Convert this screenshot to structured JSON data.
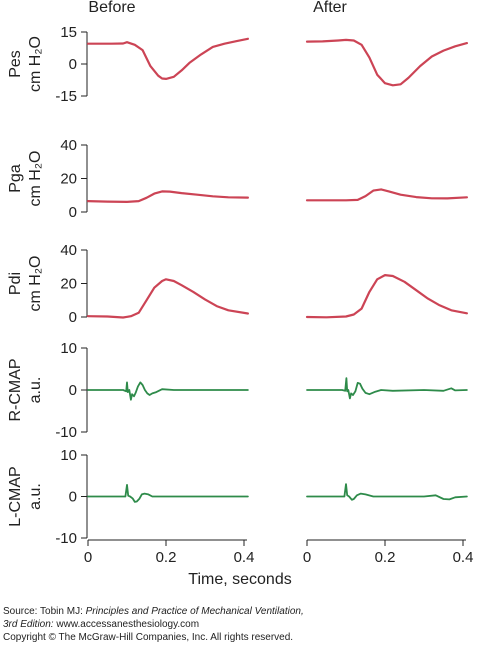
{
  "columns": [
    "Before",
    "After"
  ],
  "x_axis_label": "Time, seconds",
  "source": {
    "prefix": "Source: Tobin MJ: ",
    "title_line1": "Principles and Practice of Mechanical Ventilation,",
    "edition": "3rd Edition:",
    "url": " www.accessanesthesiology.com",
    "copyright": "Copyright © The McGraw-Hill Companies, Inc. All rights reserved."
  },
  "colors": {
    "pressure": "#cc4455",
    "cmap": "#2e8b4a",
    "axis": "#222222"
  },
  "chart_data": [
    {
      "type": "line",
      "id": "pes",
      "label_line1": "Pes",
      "label_line2": "cm H₂O",
      "ylim": [
        -15,
        15
      ],
      "yticks": [
        15,
        0,
        -15
      ],
      "xlim": [
        0,
        0.4
      ],
      "xticks": [
        0,
        0.2,
        0.4
      ],
      "series": [
        {
          "column": "Before",
          "x": [
            0,
            0.03,
            0.06,
            0.09,
            0.1,
            0.12,
            0.14,
            0.16,
            0.18,
            0.19,
            0.2,
            0.22,
            0.24,
            0.26,
            0.29,
            0.32,
            0.35,
            0.38,
            0.41
          ],
          "y": [
            9.5,
            9.5,
            9.5,
            9.6,
            10.2,
            9,
            6.5,
            -1,
            -5.5,
            -6.8,
            -7,
            -6,
            -3,
            0.5,
            4.5,
            8,
            9.5,
            10.7,
            11.8
          ]
        },
        {
          "column": "After",
          "x": [
            0,
            0.04,
            0.08,
            0.1,
            0.12,
            0.14,
            0.16,
            0.18,
            0.2,
            0.22,
            0.24,
            0.26,
            0.29,
            0.32,
            0.35,
            0.38,
            0.41
          ],
          "y": [
            10.5,
            10.6,
            11,
            11.3,
            11,
            9,
            3,
            -5,
            -9,
            -10,
            -9.5,
            -6.5,
            -1,
            3.5,
            6.3,
            8.3,
            9.8
          ]
        }
      ]
    },
    {
      "type": "line",
      "id": "pga",
      "label_line1": "Pga",
      "label_line2": "cm H₂O",
      "ylim": [
        0,
        40
      ],
      "yticks": [
        40,
        20,
        0
      ],
      "xlim": [
        0,
        0.4
      ],
      "xticks": [
        0,
        0.2,
        0.4
      ],
      "series": [
        {
          "column": "Before",
          "x": [
            0,
            0.05,
            0.1,
            0.13,
            0.15,
            0.17,
            0.19,
            0.21,
            0.24,
            0.28,
            0.32,
            0.36,
            0.41
          ],
          "y": [
            6.5,
            6.2,
            6,
            6.5,
            8.5,
            11,
            12.3,
            12.2,
            11.3,
            10.3,
            9.4,
            8.8,
            8.6
          ]
        },
        {
          "column": "After",
          "x": [
            0,
            0.05,
            0.1,
            0.13,
            0.15,
            0.17,
            0.19,
            0.21,
            0.24,
            0.28,
            0.32,
            0.36,
            0.41
          ],
          "y": [
            7,
            7,
            7,
            7.2,
            9.5,
            12.8,
            13.5,
            12.3,
            10.3,
            8.9,
            8.2,
            8.1,
            8.8
          ]
        }
      ]
    },
    {
      "type": "line",
      "id": "pdi",
      "label_line1": "Pdi",
      "label_line2": "cm H₂O",
      "ylim": [
        0,
        40
      ],
      "yticks": [
        40,
        20,
        0
      ],
      "xlim": [
        0,
        0.4
      ],
      "xticks": [
        0,
        0.2,
        0.4
      ],
      "series": [
        {
          "column": "Before",
          "x": [
            0,
            0.05,
            0.09,
            0.11,
            0.13,
            0.15,
            0.17,
            0.19,
            0.2,
            0.22,
            0.24,
            0.27,
            0.3,
            0.33,
            0.36,
            0.41
          ],
          "y": [
            0.5,
            0.3,
            -0.3,
            0.5,
            2.5,
            10,
            17.5,
            21.5,
            22.5,
            21.5,
            19,
            15,
            10.5,
            6.5,
            4,
            2.1
          ]
        },
        {
          "column": "After",
          "x": [
            0,
            0.05,
            0.1,
            0.12,
            0.14,
            0.16,
            0.18,
            0.2,
            0.22,
            0.25,
            0.28,
            0.31,
            0.34,
            0.37,
            0.41
          ],
          "y": [
            0,
            -0.2,
            0.3,
            1.5,
            5,
            15,
            22.5,
            25,
            24.5,
            21,
            16,
            11,
            7,
            4,
            2.2
          ]
        }
      ]
    },
    {
      "type": "line",
      "id": "rcmap",
      "label_line1": "R-CMAP",
      "label_line2": "a.u.",
      "ylim": [
        -10,
        10
      ],
      "yticks": [
        10,
        0,
        -10
      ],
      "xlim": [
        0,
        0.4
      ],
      "xticks": [
        0,
        0.2,
        0.4
      ],
      "series": [
        {
          "column": "Before",
          "x": [
            0,
            0.05,
            0.09,
            0.098,
            0.1,
            0.102,
            0.106,
            0.11,
            0.113,
            0.118,
            0.122,
            0.128,
            0.134,
            0.14,
            0.146,
            0.152,
            0.158,
            0.165,
            0.175,
            0.19,
            0.22,
            0.3,
            0.41
          ],
          "y": [
            0,
            0,
            0,
            -0.3,
            1.8,
            -0.5,
            0,
            -2.3,
            -1,
            -1.5,
            -0.7,
            0.8,
            1.8,
            1.2,
            0,
            -0.8,
            -1.2,
            -0.8,
            -0.5,
            0.2,
            0,
            0,
            0
          ]
        },
        {
          "column": "After",
          "x": [
            0,
            0.05,
            0.09,
            0.098,
            0.101,
            0.103,
            0.106,
            0.11,
            0.113,
            0.118,
            0.124,
            0.13,
            0.136,
            0.142,
            0.15,
            0.16,
            0.175,
            0.19,
            0.22,
            0.3,
            0.35,
            0.37,
            0.38,
            0.41
          ],
          "y": [
            0,
            0,
            0,
            -0.2,
            2.8,
            -0.3,
            0,
            -2,
            -0.8,
            -1.2,
            -0.3,
            1.7,
            1.5,
            0.3,
            -0.7,
            -1,
            -0.4,
            0,
            -0.2,
            0,
            -0.2,
            0.4,
            -0.1,
            0
          ]
        }
      ]
    },
    {
      "type": "line",
      "id": "lcmap",
      "label_line1": "L-CMAP",
      "label_line2": "a.u.",
      "ylim": [
        -10,
        10
      ],
      "yticks": [
        10,
        0,
        -10
      ],
      "xlim": [
        0,
        0.4
      ],
      "xticks": [
        0,
        0.2,
        0.4
      ],
      "series": [
        {
          "column": "Before",
          "x": [
            0,
            0.05,
            0.09,
            0.096,
            0.1,
            0.103,
            0.108,
            0.115,
            0.12,
            0.125,
            0.132,
            0.138,
            0.145,
            0.155,
            0.165,
            0.18,
            0.22,
            0.3,
            0.41
          ],
          "y": [
            0,
            0,
            0,
            0,
            2.8,
            0.2,
            0,
            -0.5,
            -1.3,
            -1.2,
            -0.5,
            0.5,
            0.7,
            0.5,
            0,
            0,
            0,
            0,
            0
          ]
        },
        {
          "column": "After",
          "x": [
            0,
            0.05,
            0.09,
            0.096,
            0.1,
            0.103,
            0.108,
            0.115,
            0.12,
            0.128,
            0.138,
            0.15,
            0.17,
            0.22,
            0.3,
            0.33,
            0.35,
            0.365,
            0.38,
            0.41
          ],
          "y": [
            0,
            0,
            0,
            0,
            3,
            0.3,
            0,
            -0.8,
            -0.6,
            0.3,
            0.7,
            0.5,
            0,
            0,
            0,
            0.3,
            -0.6,
            -0.7,
            -0.2,
            0
          ]
        }
      ]
    }
  ]
}
